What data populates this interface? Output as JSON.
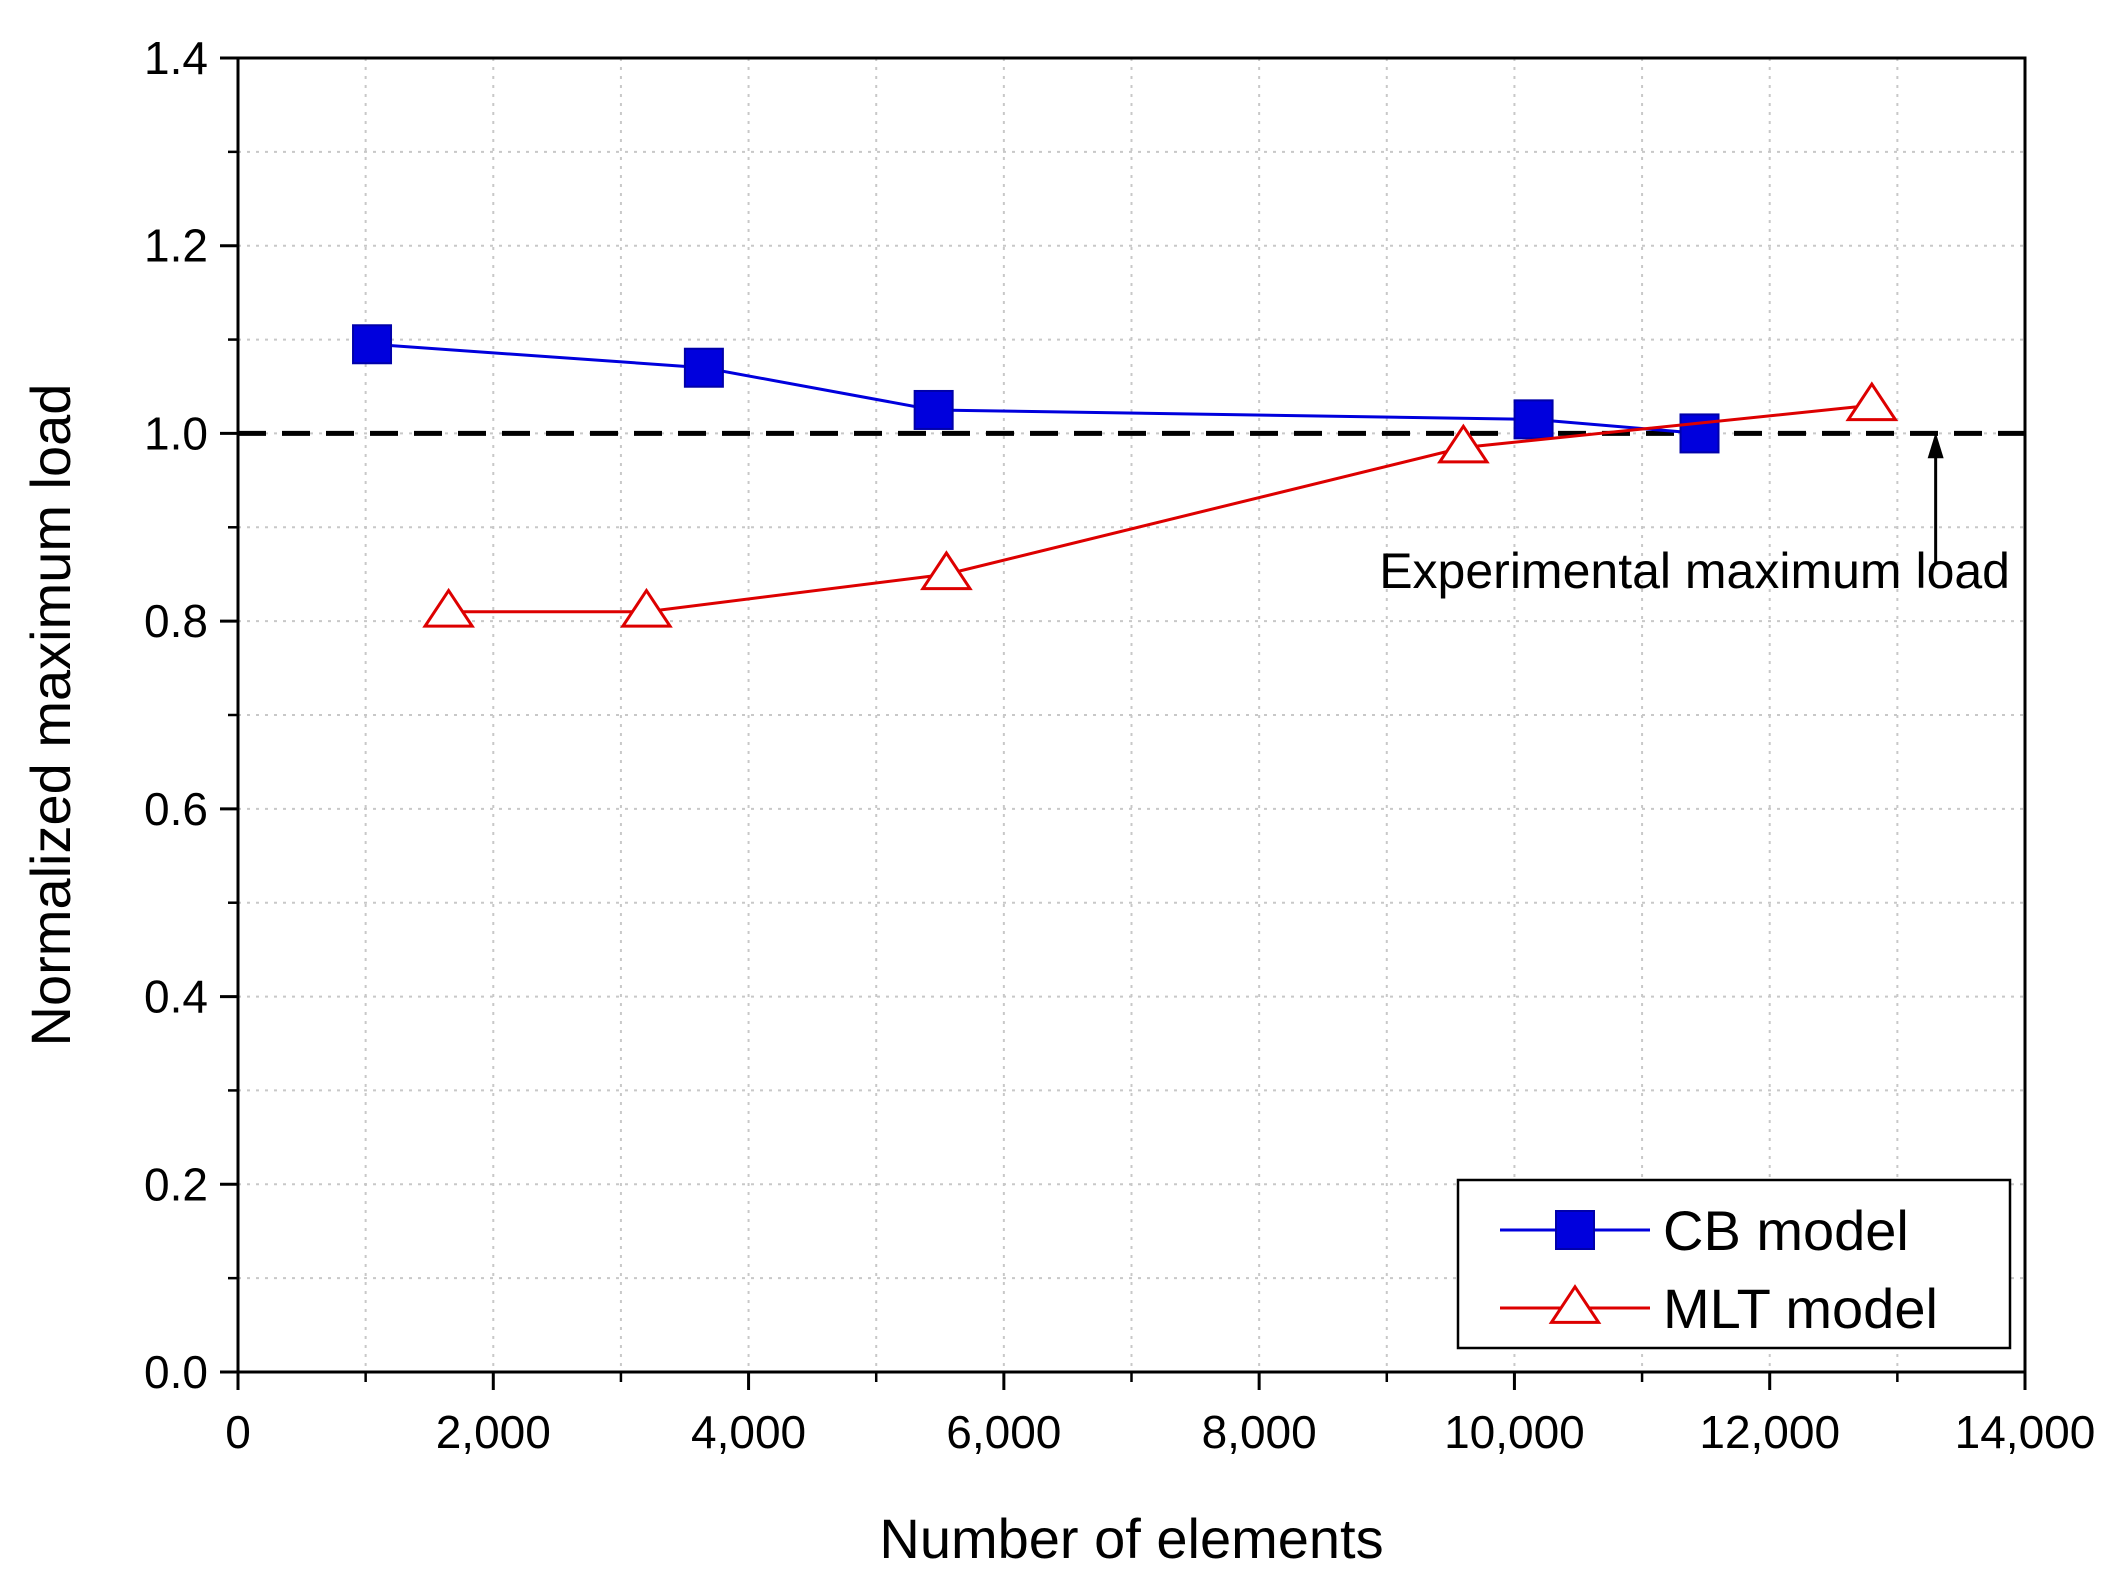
{
  "chart_data": {
    "type": "line",
    "title": "",
    "xlabel": "Number of elements",
    "ylabel": "Normalized maximum load",
    "xlim": [
      0,
      14000
    ],
    "ylim": [
      0.0,
      1.4
    ],
    "x_ticks": [
      0,
      2000,
      4000,
      6000,
      8000,
      10000,
      12000,
      14000
    ],
    "x_tick_labels": [
      "0",
      "2,000",
      "4,000",
      "6,000",
      "8,000",
      "10,000",
      "12,000",
      "14,000"
    ],
    "y_ticks": [
      0.0,
      0.2,
      0.4,
      0.6,
      0.8,
      1.0,
      1.2,
      1.4
    ],
    "y_tick_labels": [
      "0.0",
      "0.2",
      "0.4",
      "0.6",
      "0.8",
      "1.0",
      "1.2",
      "1.4"
    ],
    "grid": true,
    "legend_position": "bottom-right",
    "series": [
      {
        "name": "CB model",
        "color": "#0000dd",
        "marker": "filled-square",
        "x": [
          1050,
          3650,
          5450,
          10150,
          11450
        ],
        "y": [
          1.095,
          1.07,
          1.025,
          1.015,
          1.0
        ]
      },
      {
        "name": "MLT model",
        "color": "#dd0000",
        "marker": "open-triangle",
        "x": [
          1650,
          3200,
          5550,
          9600,
          12800
        ],
        "y": [
          0.81,
          0.81,
          0.85,
          0.985,
          1.03
        ]
      }
    ],
    "reference_line": {
      "y": 1.0,
      "style": "dashed",
      "color": "#000000"
    },
    "annotation": {
      "text": "Experimental maximum load",
      "arrow_x": 13300,
      "arrow_from_y": 0.9,
      "arrow_to_y": 0.98
    }
  }
}
